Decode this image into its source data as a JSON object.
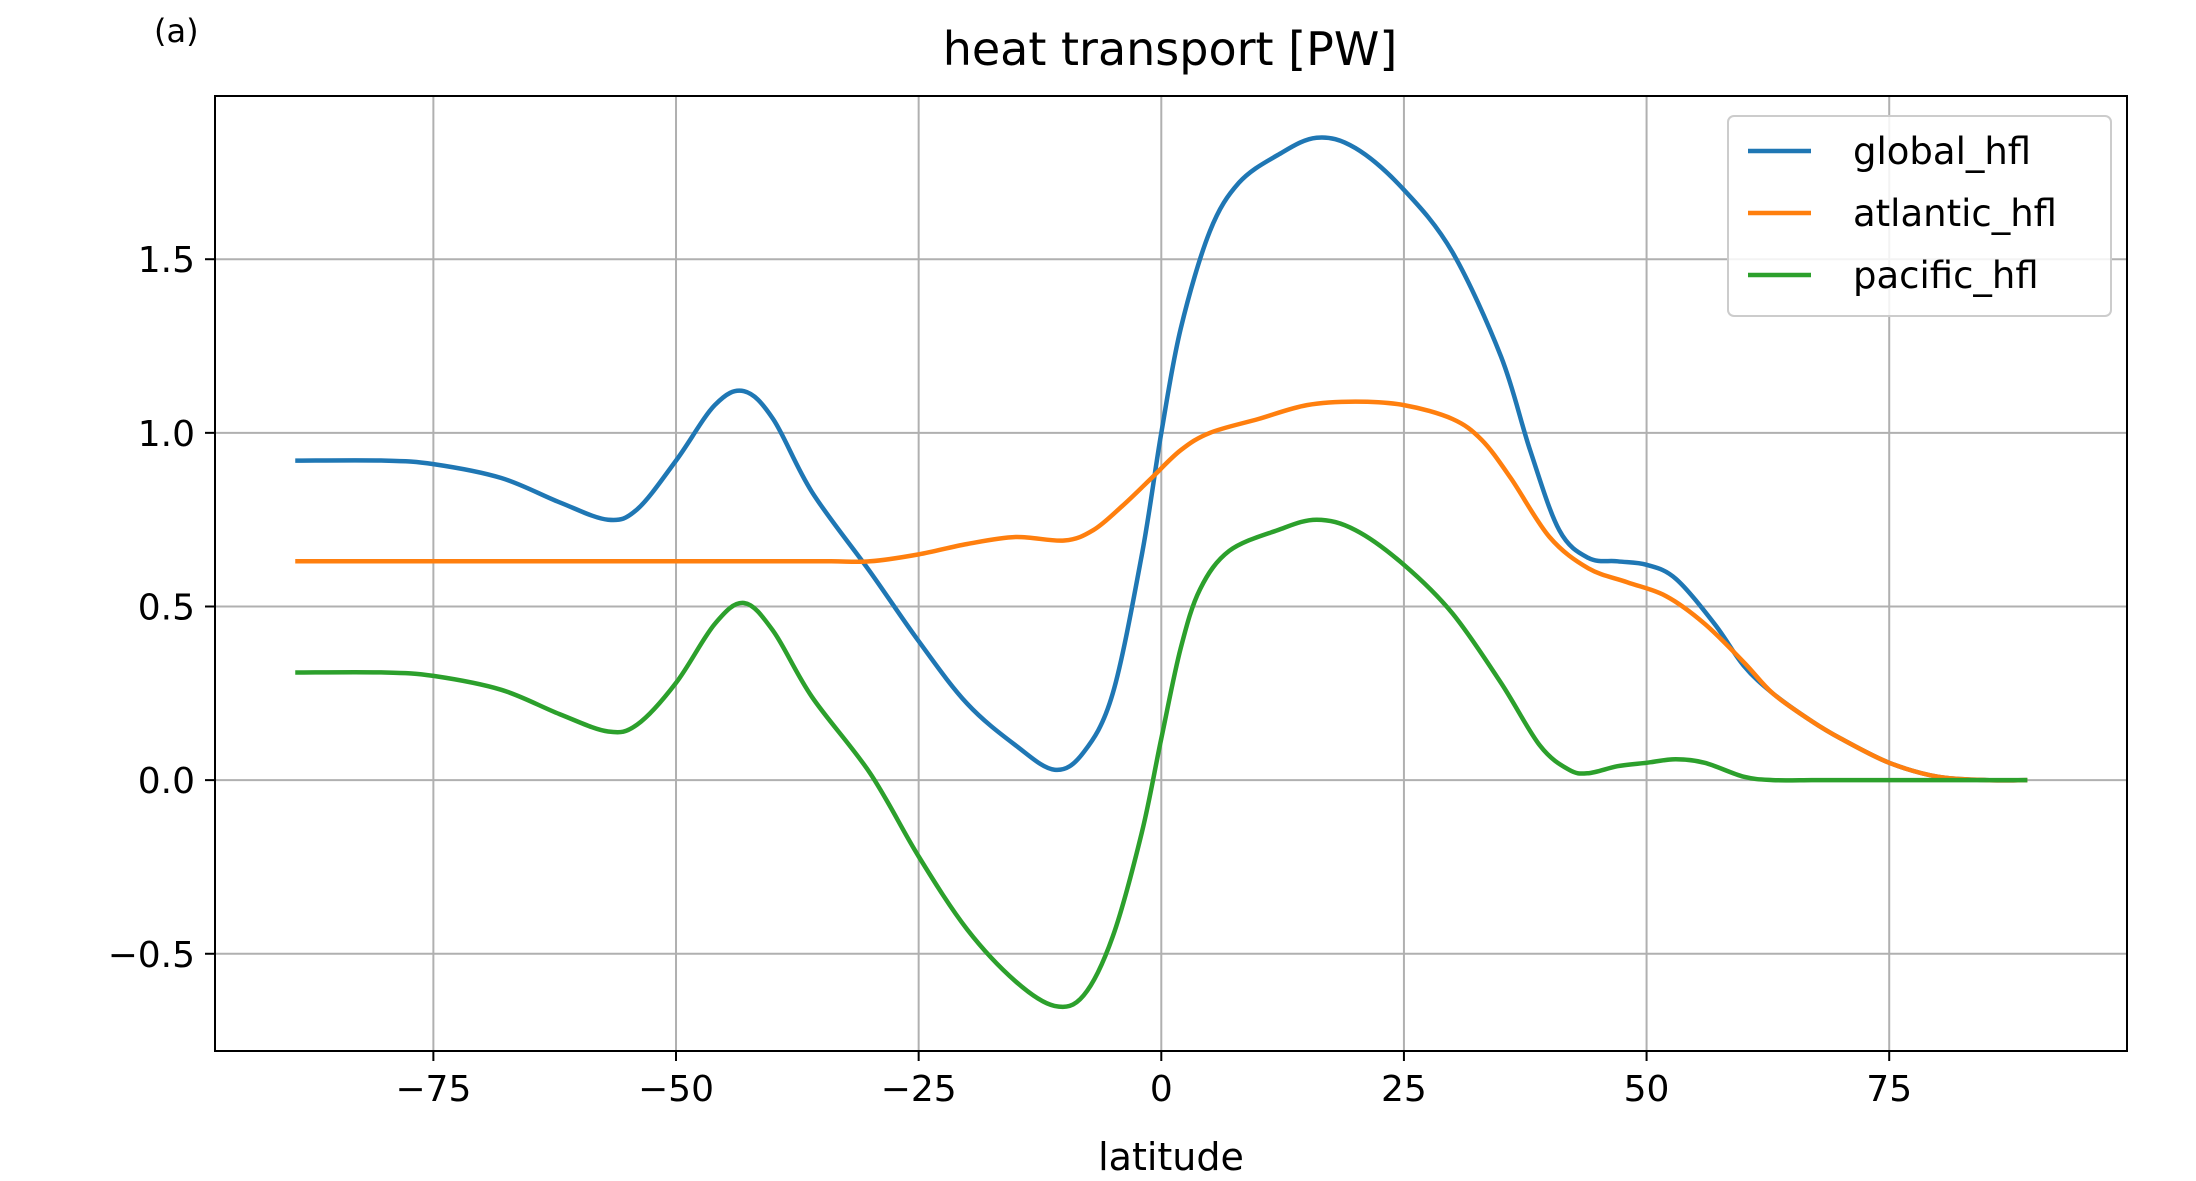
{
  "panel_label": "(a)",
  "chart_data": {
    "type": "line",
    "title": "heat transport [PW]",
    "xlabel": "latitude",
    "ylabel": "",
    "xlim": [
      -97.5,
      99.5
    ],
    "ylim": [
      -0.78,
      1.97
    ],
    "xticks": [
      -75,
      -50,
      -25,
      0,
      25,
      50,
      75
    ],
    "xtick_labels": [
      "−75",
      "−50",
      "−25",
      "0",
      "25",
      "50",
      "75"
    ],
    "yticks": [
      -0.5,
      0.0,
      0.5,
      1.0,
      1.5
    ],
    "ytick_labels": [
      "−0.5",
      "0.0",
      "0.5",
      "1.0",
      "1.5"
    ],
    "grid": true,
    "legend_position": "top-right",
    "series": [
      {
        "name": "global_hfl",
        "color": "#1f77b4",
        "x": [
          -89,
          -80,
          -75,
          -68,
          -62,
          -57,
          -54,
          -50,
          -46,
          -43,
          -40,
          -36,
          -30,
          -25,
          -20,
          -15,
          -11,
          -8,
          -5,
          -2,
          0,
          2,
          5,
          8,
          12,
          16,
          20,
          25,
          30,
          35,
          38,
          41,
          44,
          47,
          50,
          53,
          57,
          60,
          63,
          67,
          70,
          75,
          80,
          85,
          89
        ],
        "y": [
          0.92,
          0.92,
          0.91,
          0.87,
          0.8,
          0.75,
          0.78,
          0.92,
          1.08,
          1.12,
          1.04,
          0.83,
          0.6,
          0.4,
          0.22,
          0.1,
          0.03,
          0.08,
          0.25,
          0.65,
          1.0,
          1.3,
          1.58,
          1.72,
          1.8,
          1.85,
          1.82,
          1.7,
          1.52,
          1.22,
          0.95,
          0.72,
          0.64,
          0.63,
          0.62,
          0.58,
          0.45,
          0.33,
          0.25,
          0.17,
          0.12,
          0.05,
          0.01,
          0.0,
          0.0
        ]
      },
      {
        "name": "atlantic_hfl",
        "color": "#ff7f0e",
        "x": [
          -89,
          -80,
          -70,
          -60,
          -50,
          -40,
          -34,
          -30,
          -25,
          -20,
          -15,
          -10,
          -7,
          -4,
          -1,
          2,
          5,
          10,
          15,
          20,
          25,
          30,
          33,
          36,
          40,
          44,
          48,
          52,
          56,
          60,
          63,
          67,
          70,
          75,
          80,
          85,
          89
        ],
        "y": [
          0.63,
          0.63,
          0.63,
          0.63,
          0.63,
          0.63,
          0.63,
          0.63,
          0.65,
          0.68,
          0.7,
          0.69,
          0.72,
          0.79,
          0.87,
          0.95,
          1.0,
          1.04,
          1.08,
          1.09,
          1.08,
          1.04,
          0.98,
          0.87,
          0.7,
          0.61,
          0.57,
          0.53,
          0.45,
          0.34,
          0.25,
          0.17,
          0.12,
          0.05,
          0.01,
          0.0,
          0.0
        ]
      },
      {
        "name": "pacific_hfl",
        "color": "#2ca02c",
        "x": [
          -89,
          -80,
          -75,
          -68,
          -62,
          -57,
          -54,
          -50,
          -46,
          -43,
          -40,
          -36,
          -30,
          -25,
          -20,
          -15,
          -11,
          -8,
          -5,
          -2,
          0,
          2,
          4,
          7,
          12,
          16,
          20,
          25,
          30,
          35,
          39,
          42,
          44,
          47,
          50,
          53,
          56,
          60,
          63,
          67,
          70,
          75,
          80,
          85,
          89
        ],
        "y": [
          0.31,
          0.31,
          0.3,
          0.26,
          0.19,
          0.14,
          0.16,
          0.28,
          0.45,
          0.51,
          0.43,
          0.24,
          0.02,
          -0.22,
          -0.43,
          -0.58,
          -0.65,
          -0.62,
          -0.45,
          -0.15,
          0.12,
          0.38,
          0.55,
          0.66,
          0.72,
          0.75,
          0.72,
          0.62,
          0.48,
          0.28,
          0.1,
          0.03,
          0.02,
          0.04,
          0.05,
          0.06,
          0.05,
          0.01,
          0.0,
          0.0,
          0.0,
          0.0,
          0.0,
          0.0,
          0.0
        ]
      }
    ]
  }
}
